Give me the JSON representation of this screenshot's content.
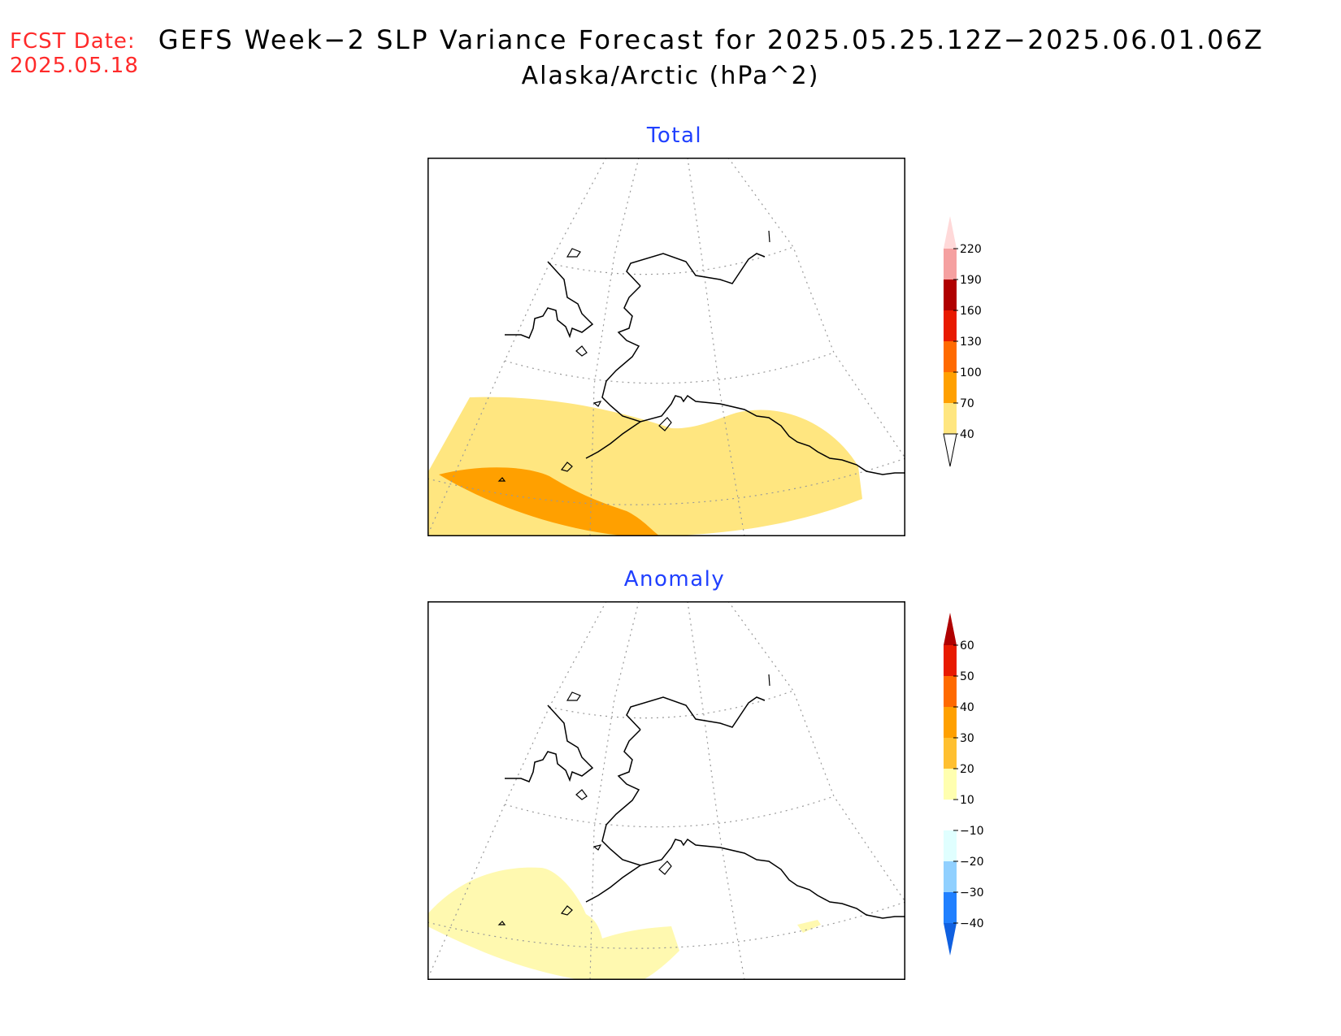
{
  "header": {
    "fcst_label": "FCST Date:",
    "fcst_date": "2025.05.18",
    "title": "GEFS Week−2 SLP Variance Forecast for 2025.05.25.12Z−2025.06.01.06Z",
    "subtitle": "Alaska/Arctic (hPa^2)"
  },
  "panels": [
    {
      "title": "Total",
      "colorbar": {
        "labels": [
          "220",
          "190",
          "160",
          "130",
          "100",
          "70",
          "40"
        ],
        "colors": [
          "#ffd9d9",
          "#f5a0a0",
          "#b00000",
          "#e81a00",
          "#ff6a00",
          "#ffa000",
          "#ffe680",
          "#ffffff"
        ]
      },
      "shading": {
        "light_level": "40-70",
        "dark_level": "70-100",
        "light_color": "#ffe680",
        "dark_color": "#ffa000"
      }
    },
    {
      "title": "Anomaly",
      "colorbar": {
        "labels": [
          "60",
          "50",
          "40",
          "30",
          "20",
          "10",
          "−10",
          "−20",
          "−30",
          "−40"
        ],
        "colors": [
          "#b00000",
          "#e81a00",
          "#ff6a00",
          "#ffa000",
          "#ffc030",
          "#ffffb0",
          "#ffffff",
          "#e0ffff",
          "#90d0ff",
          "#2080ff",
          "#1060e0"
        ]
      },
      "shading": {
        "level": "10-20",
        "color": "#fff9b0"
      }
    }
  ]
}
